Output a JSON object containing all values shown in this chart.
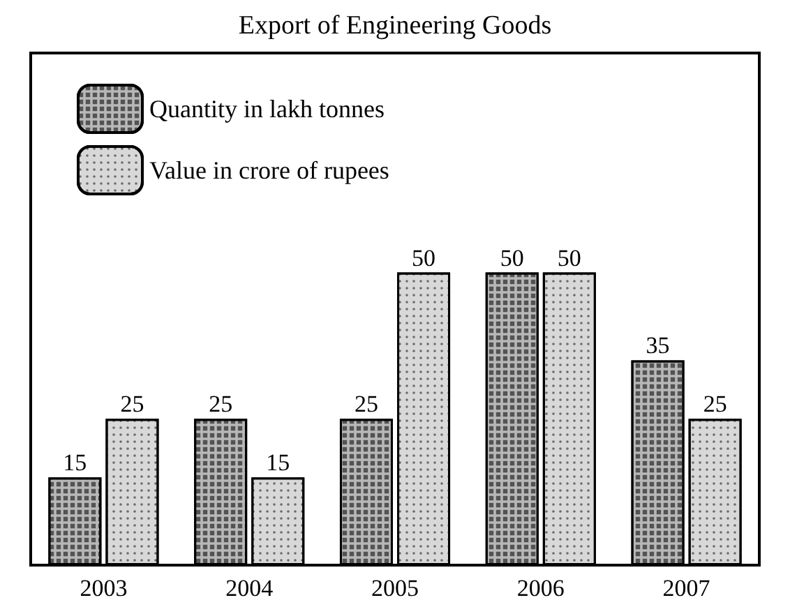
{
  "chart_data": {
    "type": "bar",
    "title": "Export of Engineering Goods",
    "categories": [
      "2003",
      "2004",
      "2005",
      "2006",
      "2007"
    ],
    "series": [
      {
        "name": "Quantity in lakh tonnes",
        "color": "#b8b8b8",
        "values": [
          15,
          25,
          25,
          50,
          35
        ]
      },
      {
        "name": "Value in crore of rupees",
        "color": "#d8d8d8",
        "values": [
          25,
          15,
          50,
          50,
          25
        ]
      }
    ],
    "data_labels": true,
    "legend": "top left",
    "tick_labels": "x"
  }
}
